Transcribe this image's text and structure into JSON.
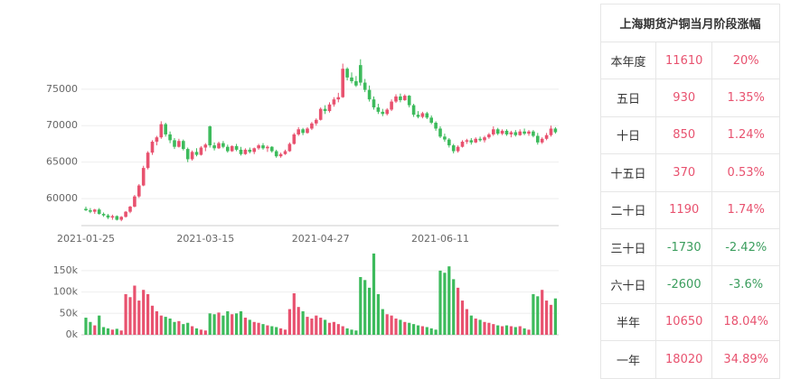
{
  "chart_data": [
    {
      "type": "candlestick",
      "up_color": "#e8526f",
      "down_color": "#3dbb5c",
      "grid": true,
      "ylim": [
        56300,
        84750
      ],
      "yticks": [
        60000,
        65000,
        70000,
        75000
      ],
      "categories": [
        "2021-01-25",
        null,
        null,
        null,
        null,
        null,
        null,
        null,
        null,
        null,
        null,
        null,
        null,
        null,
        null,
        null,
        null,
        null,
        null,
        null,
        null,
        null,
        null,
        null,
        null,
        null,
        null,
        "2021-03-15",
        null,
        null,
        null,
        null,
        null,
        null,
        null,
        null,
        null,
        null,
        null,
        null,
        null,
        null,
        null,
        null,
        null,
        null,
        null,
        null,
        null,
        null,
        null,
        null,
        null,
        "2021-04-27",
        null,
        null,
        null,
        null,
        null,
        null,
        null,
        null,
        null,
        null,
        null,
        null,
        null,
        null,
        null,
        null,
        null,
        null,
        null,
        null,
        null,
        null,
        null,
        null,
        null,
        null,
        "2021-06-11",
        null,
        null,
        null,
        null,
        null,
        null,
        null,
        null,
        null,
        null,
        null,
        null,
        null,
        null,
        null,
        null,
        null,
        null,
        null,
        null,
        null,
        null,
        null,
        null,
        null,
        null
      ],
      "ohlc": [
        [
          58600,
          58900,
          58300,
          58400
        ],
        [
          58400,
          58700,
          58000,
          58200
        ],
        [
          58200,
          58600,
          57900,
          58500
        ],
        [
          58500,
          58700,
          57800,
          57900
        ],
        [
          57900,
          58100,
          57500,
          57700
        ],
        [
          57700,
          57900,
          57200,
          57400
        ],
        [
          57400,
          57800,
          57100,
          57600
        ],
        [
          57600,
          57700,
          57000,
          57100
        ],
        [
          57100,
          57600,
          56900,
          57500
        ],
        [
          57500,
          58300,
          57400,
          58200
        ],
        [
          58200,
          59000,
          58000,
          58900
        ],
        [
          58900,
          60500,
          58800,
          60300
        ],
        [
          60300,
          62000,
          60100,
          61800
        ],
        [
          61800,
          64500,
          61700,
          64200
        ],
        [
          64200,
          66500,
          64000,
          66300
        ],
        [
          66300,
          68000,
          66000,
          67800
        ],
        [
          67800,
          68600,
          67300,
          68400
        ],
        [
          68400,
          70600,
          68200,
          70200
        ],
        [
          70200,
          70400,
          68500,
          68800
        ],
        [
          68800,
          69200,
          67600,
          68000
        ],
        [
          68000,
          68300,
          66800,
          67100
        ],
        [
          67100,
          68200,
          67000,
          67900
        ],
        [
          67900,
          68100,
          66600,
          66800
        ],
        [
          66800,
          67000,
          65000,
          65400
        ],
        [
          65400,
          66600,
          65200,
          66400
        ],
        [
          66400,
          66900,
          65800,
          66000
        ],
        [
          66000,
          67200,
          65900,
          67000
        ],
        [
          67000,
          67600,
          66500,
          67400
        ],
        [
          69900,
          70000,
          67000,
          67300
        ],
        [
          67300,
          67700,
          66600,
          66900
        ],
        [
          66900,
          67800,
          66800,
          67600
        ],
        [
          67600,
          67900,
          66900,
          67100
        ],
        [
          67100,
          67400,
          66300,
          66500
        ],
        [
          66500,
          67300,
          66400,
          67200
        ],
        [
          67200,
          67500,
          66500,
          66700
        ],
        [
          66700,
          67100,
          65900,
          66100
        ],
        [
          66100,
          66900,
          66000,
          66700
        ],
        [
          66700,
          67000,
          66200,
          66400
        ],
        [
          66400,
          67000,
          66100,
          66900
        ],
        [
          66900,
          67500,
          66700,
          67300
        ],
        [
          67300,
          67600,
          66700,
          66900
        ],
        [
          66900,
          67300,
          66400,
          67100
        ],
        [
          67100,
          67200,
          66300,
          66500
        ],
        [
          66500,
          66700,
          65600,
          65800
        ],
        [
          65800,
          66300,
          65600,
          66100
        ],
        [
          66100,
          66700,
          66000,
          66500
        ],
        [
          66500,
          67700,
          66400,
          67500
        ],
        [
          67500,
          69000,
          67400,
          68800
        ],
        [
          68800,
          69800,
          68600,
          69500
        ],
        [
          69500,
          69700,
          68700,
          69000
        ],
        [
          69000,
          69800,
          68900,
          69600
        ],
        [
          69600,
          70500,
          69400,
          70300
        ],
        [
          70300,
          71000,
          70000,
          70800
        ],
        [
          70800,
          72500,
          70700,
          72300
        ],
        [
          72300,
          72800,
          71600,
          72000
        ],
        [
          72000,
          73200,
          71800,
          72900
        ],
        [
          72900,
          73900,
          72600,
          73600
        ],
        [
          73600,
          74500,
          73200,
          73900
        ],
        [
          73900,
          78500,
          73800,
          77800
        ],
        [
          77800,
          78000,
          76200,
          76600
        ],
        [
          76600,
          77300,
          75800,
          76100
        ],
        [
          76100,
          76800,
          75300,
          75500
        ],
        [
          78300,
          79100,
          75500,
          75900
        ],
        [
          75900,
          76400,
          74600,
          74900
        ],
        [
          74900,
          75500,
          73300,
          73600
        ],
        [
          73600,
          74000,
          72200,
          72500
        ],
        [
          72500,
          73000,
          71600,
          71900
        ],
        [
          71900,
          72300,
          71300,
          71600
        ],
        [
          71600,
          72400,
          71400,
          72200
        ],
        [
          72200,
          73600,
          72000,
          73300
        ],
        [
          73300,
          74300,
          73100,
          74000
        ],
        [
          74000,
          74400,
          73200,
          73500
        ],
        [
          73500,
          74300,
          73400,
          74100
        ],
        [
          74100,
          74200,
          72500,
          72800
        ],
        [
          72800,
          73000,
          71200,
          71500
        ],
        [
          71500,
          72000,
          71000,
          71200
        ],
        [
          71200,
          71900,
          71000,
          71700
        ],
        [
          71700,
          71900,
          70900,
          71100
        ],
        [
          71100,
          71400,
          70200,
          70400
        ],
        [
          70400,
          70600,
          69300,
          69600
        ],
        [
          69600,
          69900,
          68300,
          68500
        ],
        [
          68500,
          68900,
          67800,
          68100
        ],
        [
          68100,
          68300,
          67000,
          67300
        ],
        [
          67300,
          67500,
          66200,
          66500
        ],
        [
          66500,
          67300,
          66300,
          67100
        ],
        [
          67100,
          68000,
          67000,
          67800
        ],
        [
          67800,
          68200,
          67500,
          68000
        ],
        [
          68000,
          68300,
          67400,
          67700
        ],
        [
          67700,
          68400,
          67600,
          68200
        ],
        [
          68200,
          68500,
          67800,
          68000
        ],
        [
          68000,
          68600,
          67700,
          68400
        ],
        [
          68400,
          69000,
          68200,
          68800
        ],
        [
          68800,
          69900,
          68600,
          69500
        ],
        [
          69500,
          69700,
          68700,
          68900
        ],
        [
          68900,
          69500,
          68700,
          69300
        ],
        [
          69300,
          69500,
          68600,
          68800
        ],
        [
          68800,
          69300,
          68400,
          69100
        ],
        [
          69100,
          69400,
          68500,
          68700
        ],
        [
          68700,
          69500,
          68600,
          69200
        ],
        [
          69200,
          69600,
          68700,
          68900
        ],
        [
          68900,
          69400,
          68600,
          69200
        ],
        [
          69200,
          69400,
          68400,
          68600
        ],
        [
          68600,
          69000,
          67400,
          67700
        ],
        [
          67700,
          68400,
          67500,
          68200
        ],
        [
          68200,
          69000,
          68000,
          68700
        ],
        [
          68700,
          70000,
          68500,
          69600
        ],
        [
          69600,
          69800,
          68900,
          69100
        ]
      ]
    },
    {
      "type": "bar",
      "up_color": "#e8526f",
      "down_color": "#3dbb5c",
      "grid": true,
      "ylim": [
        0,
        192000
      ],
      "yticks": [
        {
          "value": 0,
          "label": "0k"
        },
        {
          "value": 50000,
          "label": "50k"
        },
        {
          "value": 100000,
          "label": "100k"
        },
        {
          "value": 150000,
          "label": "150k"
        }
      ],
      "values": [
        40000,
        30000,
        22000,
        45000,
        18000,
        15000,
        12000,
        14000,
        10000,
        95000,
        88000,
        115000,
        80000,
        105000,
        95000,
        68000,
        55000,
        45000,
        42000,
        38000,
        30000,
        32000,
        25000,
        28000,
        20000,
        15000,
        12000,
        10000,
        50000,
        48000,
        52000,
        45000,
        55000,
        48000,
        50000,
        55000,
        40000,
        35000,
        30000,
        28000,
        25000,
        22000,
        20000,
        18000,
        15000,
        12000,
        60000,
        97000,
        65000,
        55000,
        42000,
        38000,
        45000,
        40000,
        35000,
        28000,
        30000,
        25000,
        20000,
        15000,
        12000,
        10000,
        135000,
        128000,
        110000,
        190000,
        95000,
        60000,
        48000,
        45000,
        38000,
        35000,
        30000,
        28000,
        25000,
        22000,
        20000,
        18000,
        15000,
        12000,
        150000,
        145000,
        160000,
        130000,
        110000,
        80000,
        60000,
        45000,
        38000,
        35000,
        30000,
        28000,
        25000,
        22000,
        20000,
        22000,
        20000,
        18000,
        20000,
        15000,
        12000,
        95000,
        90000,
        105000,
        80000,
        70000,
        85000
      ]
    }
  ],
  "table": {
    "title": "上海期货沪铜当月阶段涨幅",
    "rows": [
      {
        "label": "本年度",
        "value": "11610",
        "change": "20%",
        "color": "#e8526f"
      },
      {
        "label": "五日",
        "value": "930",
        "change": "1.35%",
        "color": "#e8526f"
      },
      {
        "label": "十日",
        "value": "850",
        "change": "1.24%",
        "color": "#e8526f"
      },
      {
        "label": "十五日",
        "value": "370",
        "change": "0.53%",
        "color": "#e8526f"
      },
      {
        "label": "二十日",
        "value": "1190",
        "change": "1.74%",
        "color": "#e8526f"
      },
      {
        "label": "三十日",
        "value": "-1730",
        "change": "-2.42%",
        "color": "#3a9d5d"
      },
      {
        "label": "六十日",
        "value": "-2600",
        "change": "-3.6%",
        "color": "#3a9d5d"
      },
      {
        "label": "半年",
        "value": "10650",
        "change": "18.04%",
        "color": "#e8526f"
      },
      {
        "label": "一年",
        "value": "18020",
        "change": "34.89%",
        "color": "#e8526f"
      }
    ]
  }
}
